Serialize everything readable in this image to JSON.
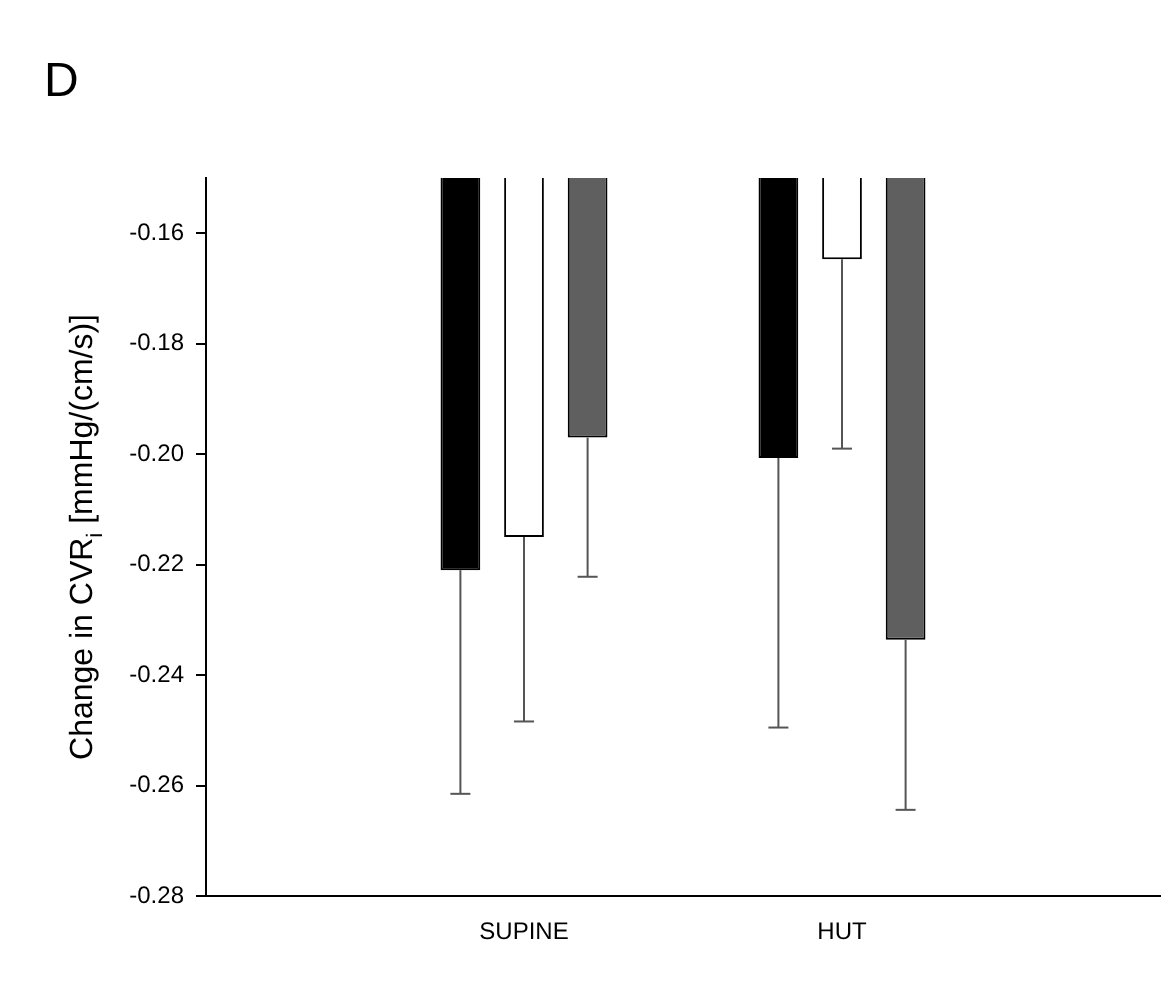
{
  "chart_data": {
    "type": "bar",
    "title": "D",
    "ylabel": "Change in CVR$_{i}$ [mmHg/(cm/s)]",
    "categories": [
      "SUPINE",
      "HUT"
    ],
    "series": [
      {
        "color": "#000000",
        "values": [
          -0.221,
          -0.2007
        ],
        "errors": [
          [
            -0.2615,
            -0.221
          ],
          [
            -0.2495,
            -0.2007
          ]
        ]
      },
      {
        "color": "#ffffff",
        "values": [
          -0.215,
          -0.1647
        ],
        "errors": [
          [
            -0.2484,
            -0.215
          ],
          [
            -0.199,
            -0.1647
          ]
        ]
      },
      {
        "color": "#5f5f5f",
        "values": [
          -0.197,
          -0.2336
        ],
        "errors": [
          [
            -0.2222,
            -0.197
          ],
          [
            -0.2644,
            -0.2336
          ]
        ]
      }
    ],
    "ylim": [
      -0.28,
      -0.15
    ],
    "yticks": [
      -0.28,
      -0.26,
      -0.24,
      -0.22,
      {
        "value": -0.2,
        "label": "-0.20"
      },
      -0.18,
      -0.16
    ],
    "grid": false,
    "legend": false
  }
}
